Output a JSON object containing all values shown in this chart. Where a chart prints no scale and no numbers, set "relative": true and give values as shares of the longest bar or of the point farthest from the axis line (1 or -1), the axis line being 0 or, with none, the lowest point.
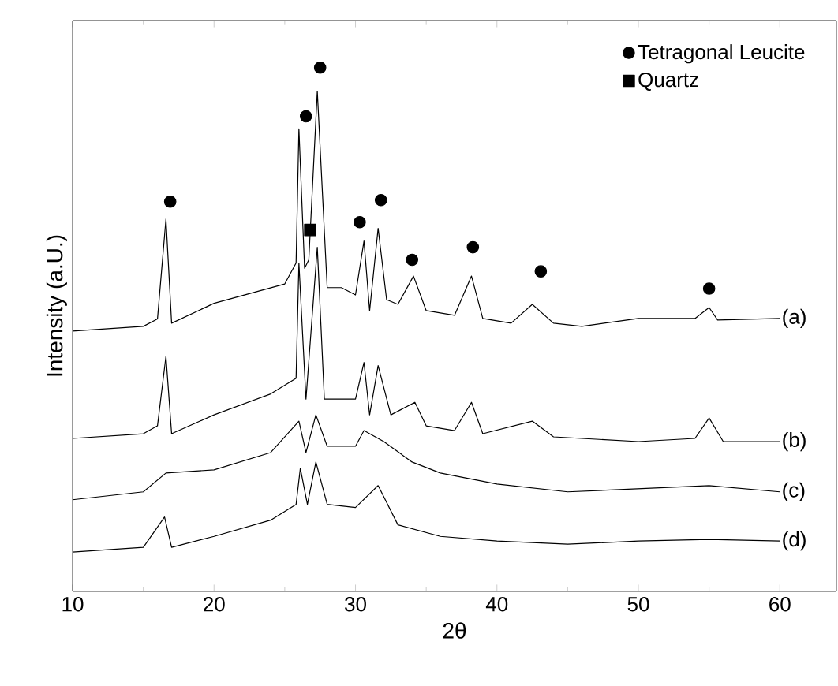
{
  "chart_data": {
    "type": "line",
    "xlabel": "2θ",
    "ylabel": "Intensity (a.U.)",
    "xlim": [
      10,
      64
    ],
    "xticks": [
      10,
      20,
      30,
      40,
      50,
      60
    ],
    "relative": true,
    "legend": "top right",
    "series": [
      {
        "name": "(a)",
        "color": "#000000",
        "x": [
          10,
          15,
          16,
          16.6,
          17,
          20,
          25,
          25.8,
          26.0,
          26.4,
          26.7,
          27.3,
          28,
          29,
          30,
          30.6,
          31,
          31.6,
          32.2,
          33,
          34.1,
          35,
          37,
          38.2,
          39,
          41,
          42.5,
          44,
          46,
          50,
          54,
          55,
          55.6,
          60
        ],
        "values": [
          0.497,
          0.506,
          0.52,
          0.711,
          0.512,
          0.55,
          0.587,
          0.627,
          0.883,
          0.617,
          0.633,
          0.955,
          0.58,
          0.58,
          0.566,
          0.669,
          0.536,
          0.693,
          0.557,
          0.548,
          0.602,
          0.536,
          0.527,
          0.602,
          0.521,
          0.512,
          0.548,
          0.512,
          0.506,
          0.521,
          0.521,
          0.542,
          0.518,
          0.521
        ]
      },
      {
        "name": "(b)",
        "color": "#000000",
        "x": [
          10,
          15,
          16,
          16.6,
          17,
          20,
          24,
          25.8,
          26.0,
          26.5,
          27.3,
          27.8,
          30,
          30.6,
          31,
          31.6,
          32.5,
          34.2,
          35,
          37,
          38.2,
          39,
          42.5,
          44,
          46,
          50,
          54,
          55,
          56,
          60
        ],
        "values": [
          0.292,
          0.301,
          0.316,
          0.449,
          0.301,
          0.337,
          0.377,
          0.407,
          0.627,
          0.367,
          0.657,
          0.367,
          0.367,
          0.437,
          0.337,
          0.431,
          0.337,
          0.361,
          0.316,
          0.307,
          0.361,
          0.301,
          0.325,
          0.295,
          0.292,
          0.286,
          0.292,
          0.331,
          0.286,
          0.286
        ]
      },
      {
        "name": "(c)",
        "color": "#000000",
        "x": [
          10,
          15,
          16.6,
          20,
          24,
          26,
          26.5,
          27.2,
          28,
          30,
          30.6,
          32,
          34,
          36,
          40,
          45,
          50,
          55,
          60
        ],
        "values": [
          0.175,
          0.19,
          0.226,
          0.232,
          0.265,
          0.325,
          0.265,
          0.337,
          0.277,
          0.277,
          0.307,
          0.286,
          0.247,
          0.226,
          0.205,
          0.19,
          0.196,
          0.202,
          0.19
        ]
      },
      {
        "name": "(d)",
        "color": "#000000",
        "x": [
          10,
          15,
          16.5,
          17,
          20,
          24,
          25.8,
          26.1,
          26.6,
          27.2,
          28,
          30,
          31.6,
          33,
          36,
          40,
          45,
          50,
          55,
          60
        ],
        "values": [
          0.075,
          0.084,
          0.142,
          0.084,
          0.105,
          0.136,
          0.166,
          0.235,
          0.166,
          0.247,
          0.166,
          0.16,
          0.202,
          0.127,
          0.105,
          0.096,
          0.09,
          0.096,
          0.099,
          0.096
        ]
      },
      {
        "name": "Tetragonal Leucite",
        "type": "scatter",
        "marker": "circle",
        "color": "#000000",
        "x": [
          16.9,
          26.5,
          27.5,
          30.3,
          31.8,
          34.0,
          38.3,
          43.1,
          55.0
        ],
        "values": [
          0.744,
          0.907,
          1.0,
          0.705,
          0.747,
          0.633,
          0.657,
          0.611,
          0.578
        ]
      },
      {
        "name": "Quartz",
        "type": "scatter",
        "marker": "square",
        "color": "#000000",
        "x": [
          26.8
        ],
        "values": [
          0.69
        ]
      }
    ]
  }
}
